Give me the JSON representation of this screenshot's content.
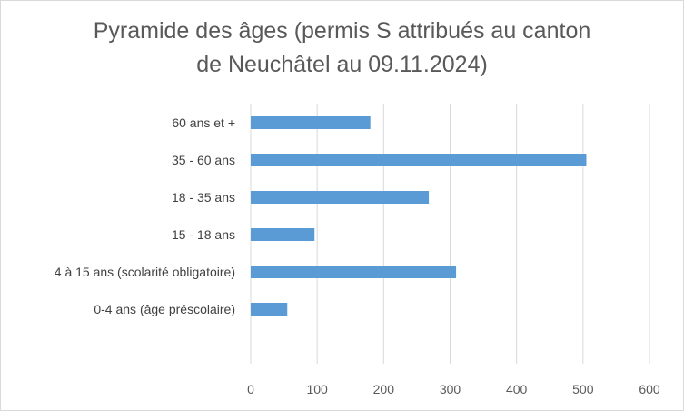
{
  "chart_data": {
    "type": "bar",
    "orientation": "horizontal",
    "title_lines": [
      "Pyramide des âges (permis S attribués au canton",
      "de Neuchâtel au 09.11.2024)"
    ],
    "categories": [
      "60 ans et +",
      "35 - 60 ans",
      "18 - 35 ans",
      "15 - 18 ans",
      "4 à 15 ans (scolarité obligatoire)",
      "0-4 ans (âge préscolaire)"
    ],
    "values": [
      180,
      505,
      268,
      96,
      309,
      55
    ],
    "xlim": [
      0,
      600
    ],
    "xticks": [
      0,
      100,
      200,
      300,
      400,
      500,
      600
    ],
    "xlabel": "",
    "ylabel": "",
    "grid": "vertical",
    "legend": "none",
    "bar_color": "#5b9bd5",
    "grid_color": "#d9d9d9"
  }
}
